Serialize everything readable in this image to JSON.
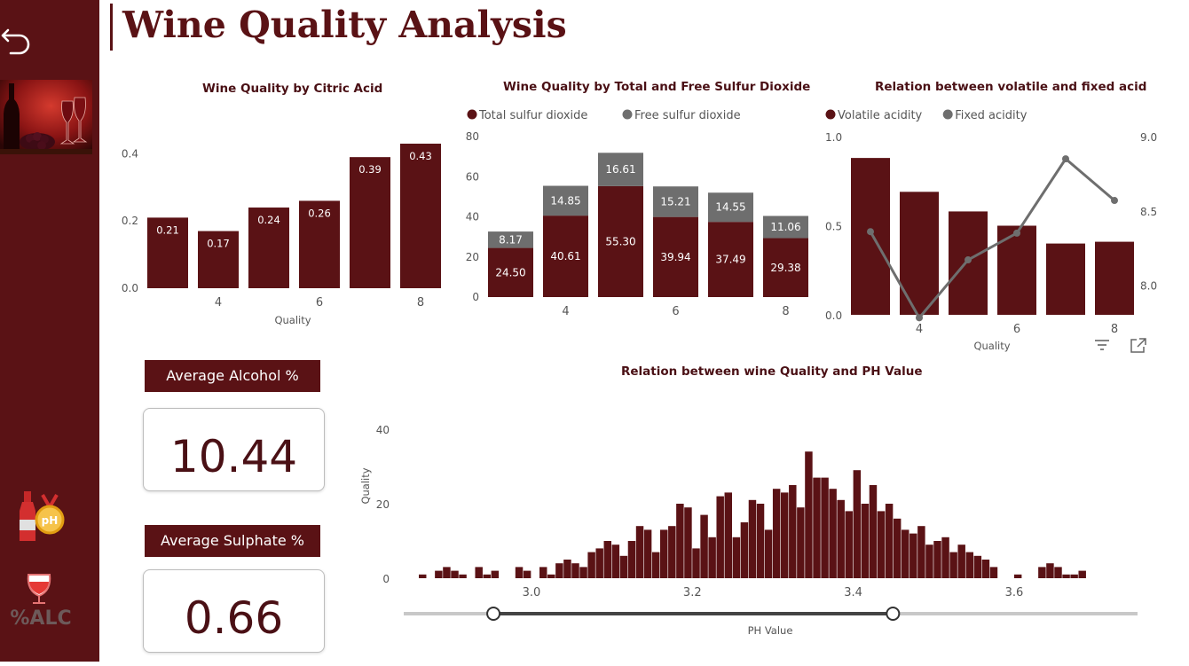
{
  "page": {
    "title": "Wine Quality Analysis"
  },
  "colors": {
    "maroon": "#5a1215",
    "bar": "#5a1215",
    "gray": "#6e6e6e",
    "accent_gold": "#f2b01e"
  },
  "sidebar": {
    "icons": [
      "back-arrow-icon",
      "wine-glasses-image",
      "wine-ph-medal-icon",
      "wine-glass-alcohol-icon"
    ],
    "alc_label": "%ALC",
    "ph_label": "pH"
  },
  "cards": {
    "alcohol": {
      "label": "Average Alcohol %",
      "value": "10.44"
    },
    "sulphate": {
      "label": "Average Sulphate %",
      "value": "0.66"
    }
  },
  "visual_controls": {
    "icons": [
      "filter-icon",
      "focus-mode-icon"
    ]
  },
  "chart_data": [
    {
      "id": "citric",
      "type": "bar",
      "title": "Wine Quality by Citric Acid",
      "xlabel": "Quality",
      "ylabel": "",
      "categories": [
        3,
        4,
        5,
        6,
        7,
        8
      ],
      "x_tick_labels": [
        "4",
        "6",
        "8"
      ],
      "values": [
        0.21,
        0.17,
        0.24,
        0.26,
        0.39,
        0.43
      ],
      "data_labels": [
        "0.21",
        "0.17",
        "0.24",
        "0.26",
        "0.39",
        "0.43"
      ],
      "y_ticks": [
        "0.0",
        "0.2",
        "0.4"
      ],
      "ylim": [
        0,
        0.43
      ],
      "grid": false
    },
    {
      "id": "sulfur",
      "type": "bar",
      "stacked": true,
      "title": "Wine Quality by Total and Free Sulfur Dioxide",
      "categories": [
        3,
        4,
        5,
        6,
        7,
        8
      ],
      "x_tick_labels": [
        "4",
        "6",
        "8"
      ],
      "legend_position": "top-left",
      "series": [
        {
          "name": "Total sulfur dioxide",
          "color": "#5a1215",
          "values": [
            24.5,
            40.61,
            55.3,
            39.94,
            37.49,
            29.38
          ],
          "data_labels": [
            "24.50",
            "40.61",
            "55.30",
            "39.94",
            "37.49",
            "29.38"
          ]
        },
        {
          "name": "Free sulfur dioxide",
          "color": "#6e6e6e",
          "values": [
            8.17,
            14.85,
            16.61,
            15.21,
            14.55,
            11.06
          ],
          "data_labels": [
            "8.17",
            "14.85",
            "16.61",
            "15.21",
            "14.55",
            "11.06"
          ]
        }
      ],
      "y_ticks": [
        "0",
        "20",
        "40",
        "60",
        "80"
      ],
      "ylim": [
        0,
        80
      ],
      "grid": false
    },
    {
      "id": "acid",
      "type": "bar",
      "combo": "bar-line",
      "title": "Relation between volatile and fixed acid",
      "xlabel": "Quality",
      "categories": [
        3,
        4,
        5,
        6,
        7,
        8
      ],
      "x_tick_labels": [
        "4",
        "6",
        "8"
      ],
      "legend_position": "top-left",
      "series": [
        {
          "name": "Volatile acidity",
          "type": "bar",
          "axis": "left",
          "color": "#5a1215",
          "values": [
            0.88,
            0.69,
            0.58,
            0.5,
            0.4,
            0.41
          ]
        },
        {
          "name": "Fixed acidity",
          "type": "line",
          "axis": "right",
          "color": "#6e6e6e",
          "values": [
            8.36,
            7.78,
            8.17,
            8.35,
            8.85,
            8.57
          ]
        }
      ],
      "y_left_ticks": [
        "0.0",
        "0.5",
        "1.0"
      ],
      "y_left_range": [
        0,
        1.0
      ],
      "y_right_ticks": [
        "8.0",
        "8.5",
        "9.0"
      ],
      "y_right_range": [
        7.8,
        9.0
      ],
      "grid": false
    },
    {
      "id": "ph",
      "type": "bar",
      "title": "Relation between wine Quality and PH Value",
      "xlabel": "PH Value",
      "ylabel": "Quality",
      "x_ticks": [
        3.0,
        3.2,
        3.4,
        3.6
      ],
      "x_tick_labels": [
        "3.0",
        "3.2",
        "3.4",
        "3.6"
      ],
      "y_ticks": [
        "0",
        "20",
        "40"
      ],
      "ylim": [
        0,
        40
      ],
      "xlim": [
        2.86,
        3.76
      ],
      "x_start": 2.86,
      "x_step": 0.01,
      "values": [
        1,
        0,
        2,
        3,
        2,
        1,
        0,
        3,
        1,
        2,
        0,
        0,
        3,
        2,
        0,
        3,
        1,
        4,
        5,
        4,
        3,
        7,
        8,
        10,
        9,
        6,
        10,
        14,
        13,
        7,
        13,
        14,
        20,
        19,
        8,
        17,
        11,
        22,
        23,
        11,
        15,
        21,
        20,
        13,
        24,
        23,
        25,
        19,
        34,
        27,
        27,
        24,
        21,
        18,
        29,
        20,
        25,
        18,
        20,
        16,
        13,
        12,
        14,
        9,
        10,
        11,
        7,
        9,
        7,
        6,
        5,
        3,
        0,
        0,
        1,
        0,
        0,
        3,
        4,
        3,
        1,
        1,
        2
      ],
      "range_slider": {
        "min": 2.86,
        "max": 3.76,
        "selected": [
          2.97,
          3.46
        ]
      },
      "grid": false
    }
  ]
}
